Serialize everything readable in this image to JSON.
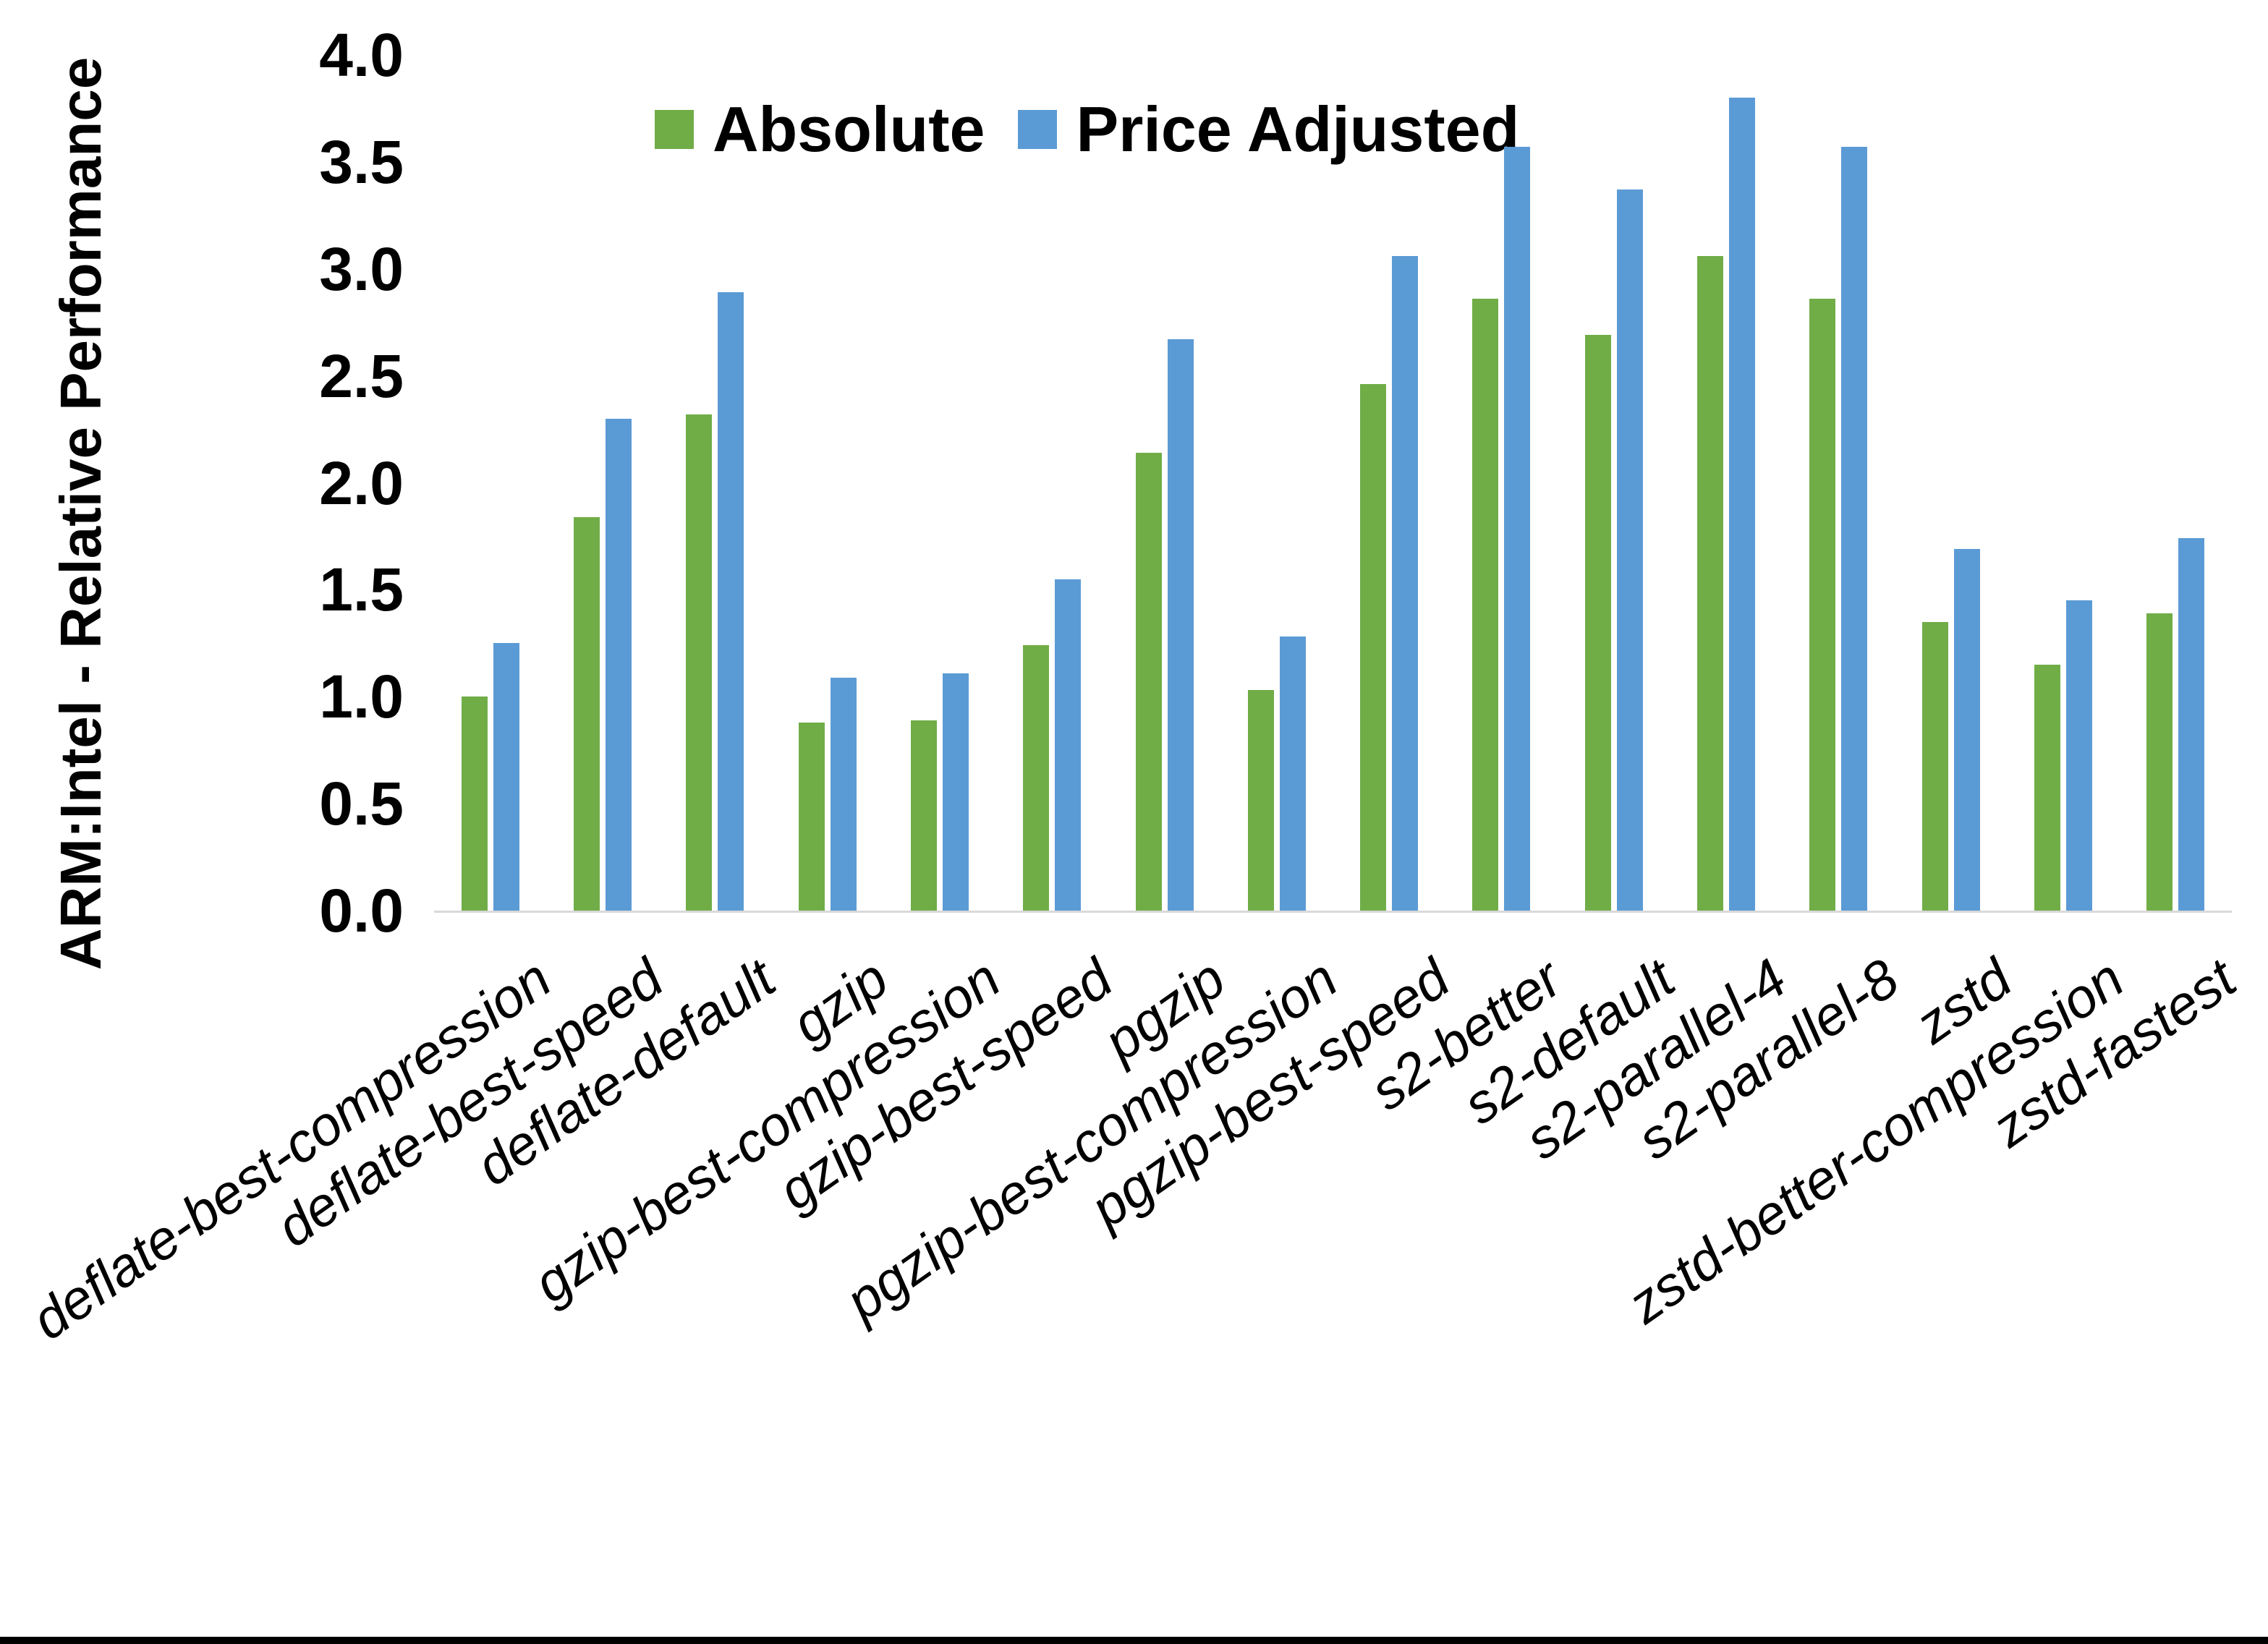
{
  "chart_data": {
    "type": "bar",
    "title": "",
    "ylabel": "ARM:Intel - Relative Performance",
    "xlabel": "",
    "ylim": [
      0.0,
      4.0
    ],
    "ytick_step": 0.5,
    "ytick_labels": [
      "0.0",
      "0.5",
      "1.0",
      "1.5",
      "2.0",
      "2.5",
      "3.0",
      "3.5",
      "4.0"
    ],
    "grid": false,
    "legend_position": "top-center",
    "categories": [
      "deflate-best-compression",
      "deflate-best-speed",
      "deflate-default",
      "gzip",
      "gzip-best-compression",
      "gzip-best-speed",
      "pgzip",
      "pgzip-best-compression",
      "pgzip-best-speed",
      "s2-better",
      "s2-default",
      "s2-parallel-4",
      "s2-parallel-8",
      "zstd",
      "zstd-better-compression",
      "zstd-fastest"
    ],
    "series": [
      {
        "name": "Absolute",
        "color": "#70AD47",
        "values": [
          1.0,
          1.84,
          2.32,
          0.88,
          0.89,
          1.24,
          2.14,
          1.03,
          2.46,
          2.86,
          2.69,
          3.06,
          2.86,
          1.35,
          1.15,
          1.39
        ]
      },
      {
        "name": "Price Adjusted",
        "color": "#5B9BD5",
        "values": [
          1.25,
          2.3,
          2.89,
          1.09,
          1.11,
          1.55,
          2.67,
          1.28,
          3.06,
          3.57,
          3.37,
          3.8,
          3.57,
          1.69,
          1.45,
          1.74
        ]
      }
    ]
  },
  "colors": {
    "background": "#ffffff",
    "axis_line": "#d9d9d9",
    "text": "#000000",
    "bottom_border": "#000000"
  }
}
